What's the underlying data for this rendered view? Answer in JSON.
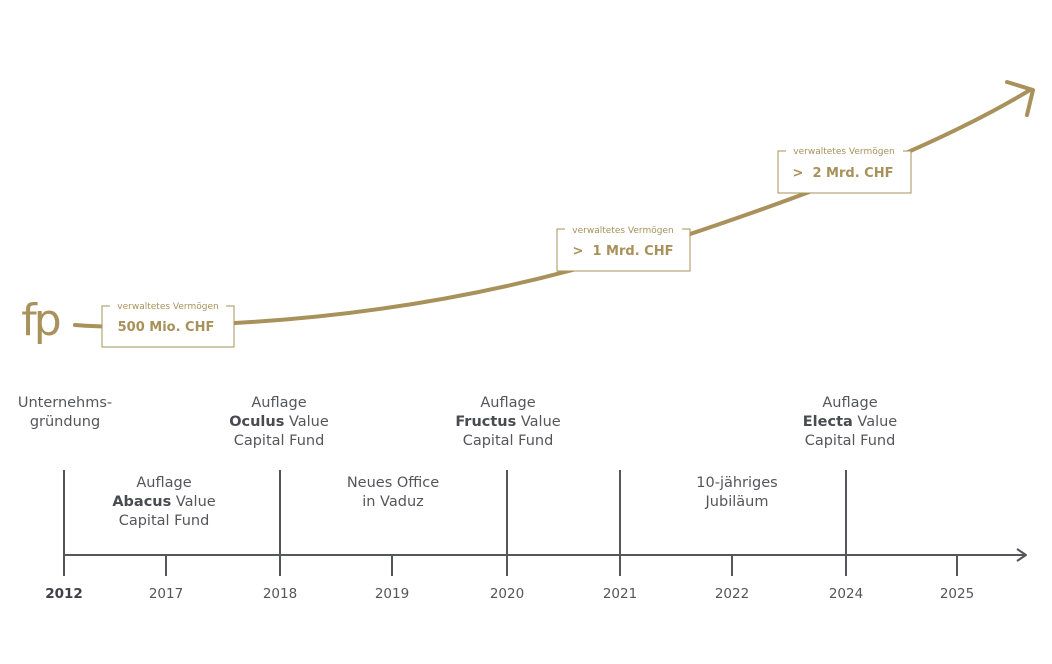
{
  "colors": {
    "gold": "#a8915a",
    "axis": "#55565a",
    "text": "#55565a"
  },
  "logo": {
    "text": "fp"
  },
  "assets": [
    {
      "caption": "verwaltetes Vermögen",
      "value": "500 Mio. CHF"
    },
    {
      "caption": "verwaltetes Vermögen",
      "value": ">  1 Mrd. CHF"
    },
    {
      "caption": "verwaltetes Vermögen",
      "value": ">  2 Mrd. CHF"
    }
  ],
  "years": [
    "2012",
    "2017",
    "2018",
    "2019",
    "2020",
    "2021",
    "2022",
    "2024",
    "2025"
  ],
  "events_above": [
    {
      "lines": [
        [
          "Unternehms-"
        ],
        [
          "gründung"
        ]
      ]
    },
    {
      "lines": [
        [
          "Auflage"
        ],
        [
          "Oculus",
          " Value"
        ],
        [
          "Capital Fund"
        ]
      ]
    },
    {
      "lines": [
        [
          "Auflage"
        ],
        [
          "Fructus",
          " Value"
        ],
        [
          "Capital Fund"
        ]
      ]
    },
    {
      "lines": [
        [
          "Auflage"
        ],
        [
          "Electa",
          " Value"
        ],
        [
          "Capital Fund"
        ]
      ]
    }
  ],
  "events_below": [
    {
      "lines": [
        [
          "Auflage"
        ],
        [
          "Abacus",
          " Value"
        ],
        [
          "Capital Fund"
        ]
      ]
    },
    {
      "lines": [
        [
          "Neues Office"
        ],
        [
          "in Vaduz"
        ]
      ]
    },
    {
      "lines": [
        [
          "10-jähriges"
        ],
        [
          "Jubiläum"
        ]
      ]
    }
  ]
}
